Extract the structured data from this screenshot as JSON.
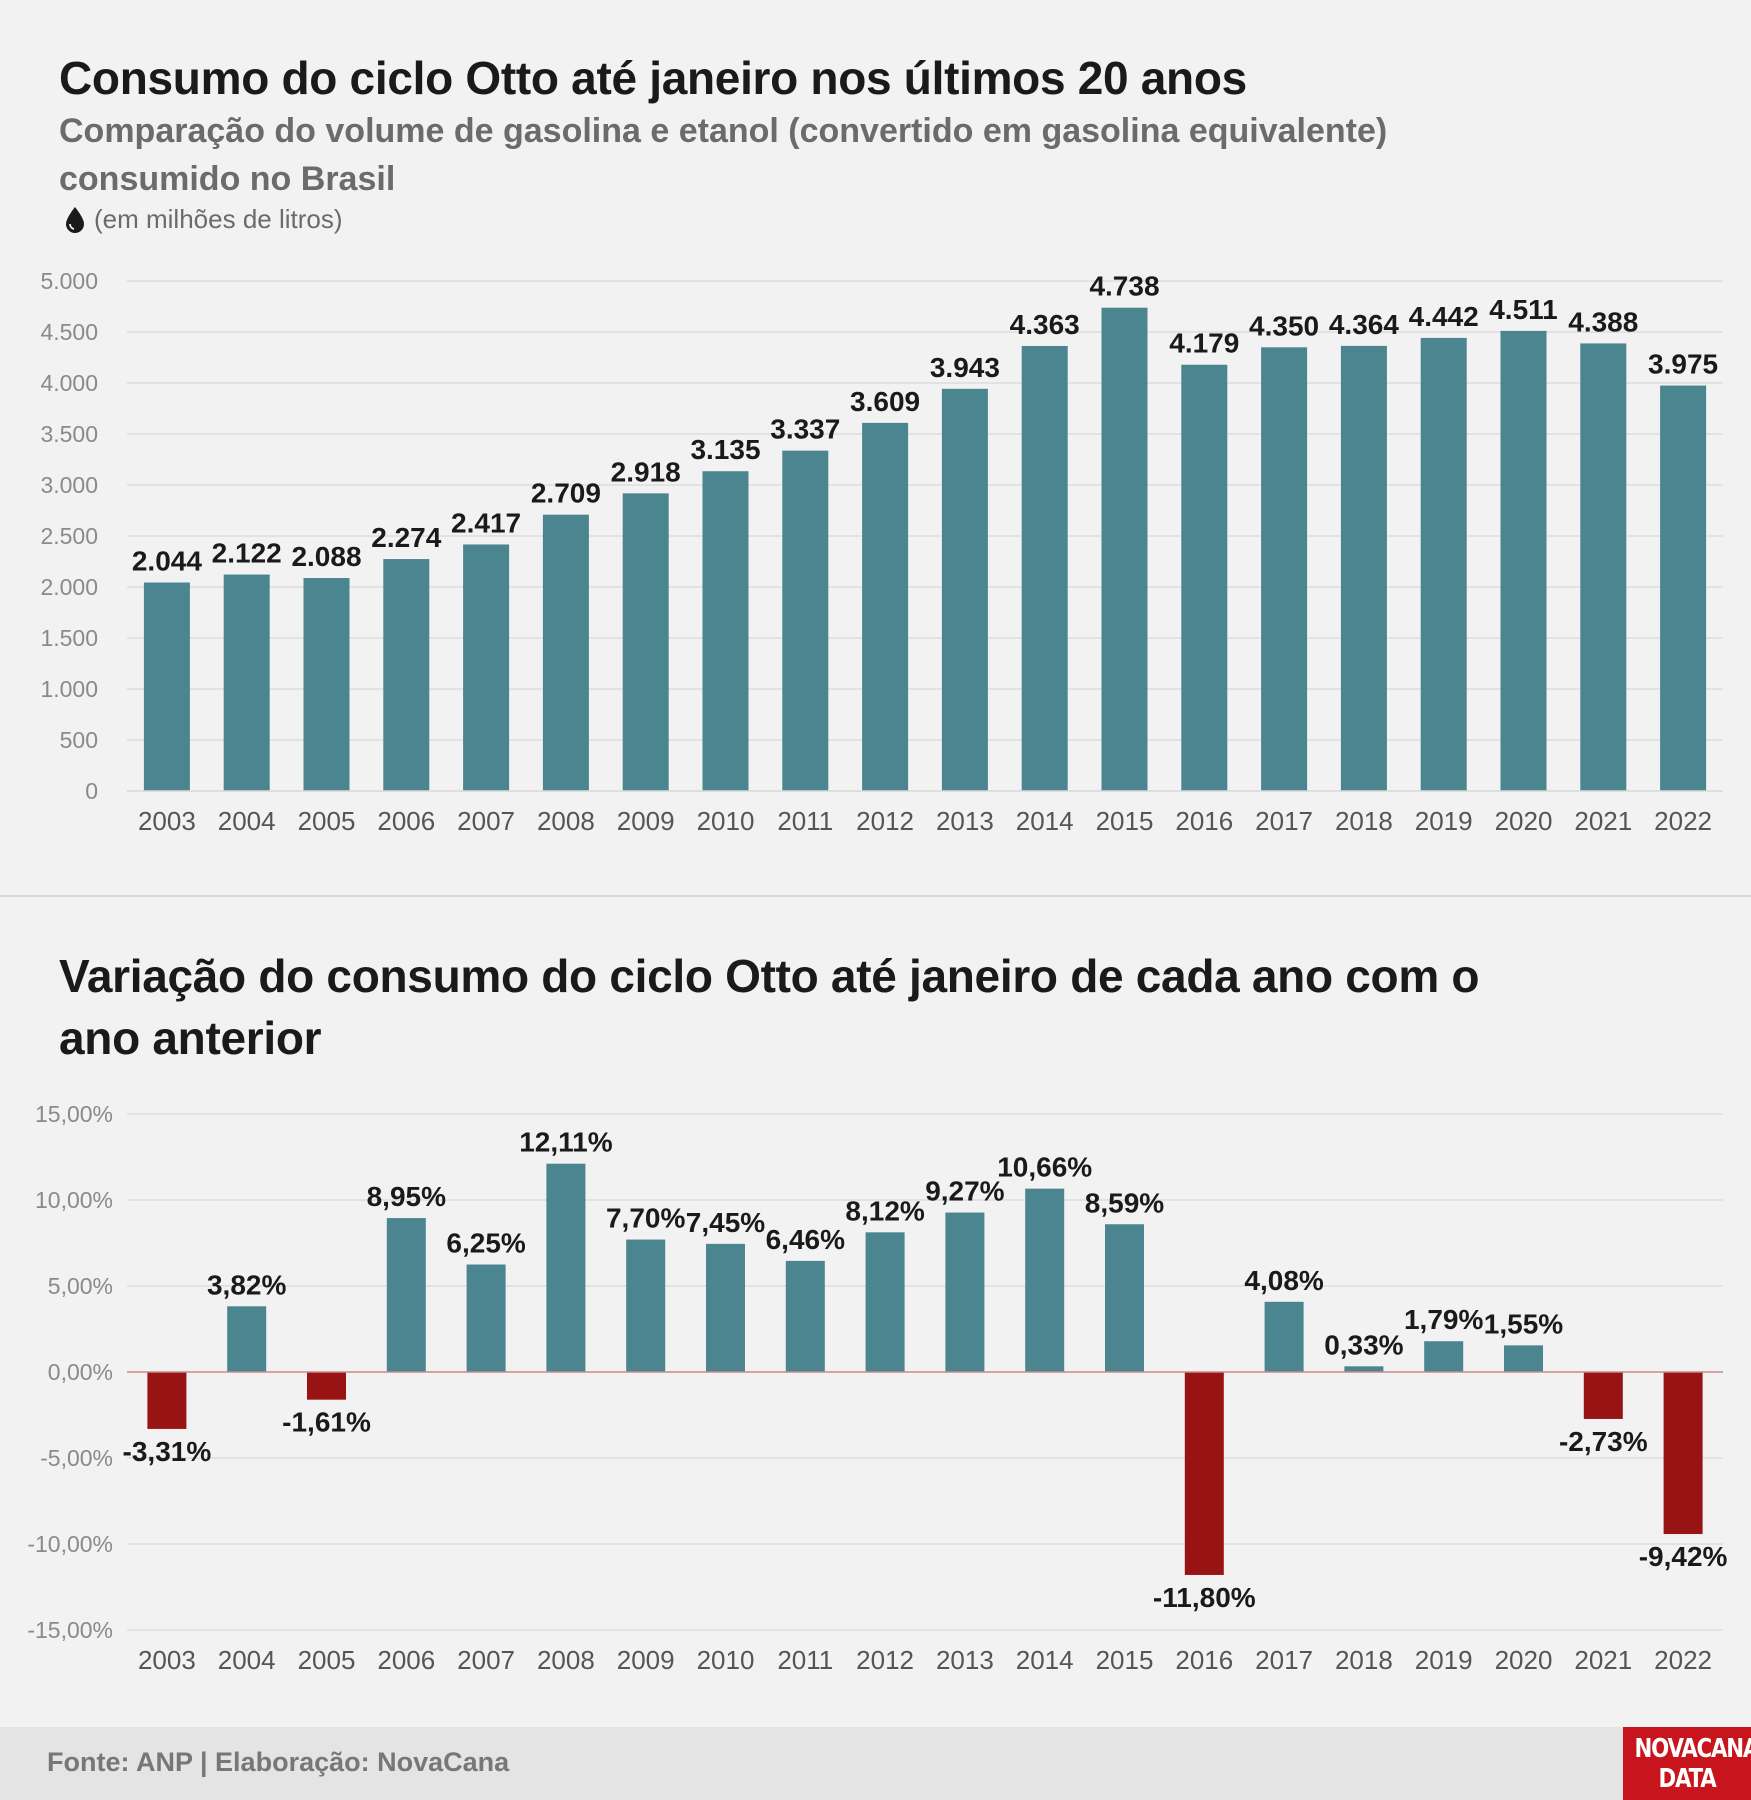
{
  "top": {
    "title": "Consumo do ciclo Otto até janeiro nos últimos 20 anos",
    "subtitle": "Comparação do volume de gasolina e etanol (convertido em gasolina equivalente) consumido no Brasil",
    "unit_label": "(em milhões de litros)",
    "unit_icon": "drop-icon"
  },
  "bottom": {
    "title": "Variação do consumo do ciclo Otto até janeiro de cada ano com o ano anterior"
  },
  "footer": {
    "source": "Fonte: ANP | Elaboração: NovaCana",
    "logo_line1": "NOVACANA",
    "logo_line2": "DATA"
  },
  "colors": {
    "bar": "#4a8590",
    "positive": "#4a8590",
    "negative": "#981414",
    "zero_line": "#c98a8a",
    "grid": "#dcdcdc",
    "logo": "#c8141c"
  },
  "chart_data": [
    {
      "type": "bar",
      "title": "Consumo do ciclo Otto até janeiro nos últimos 20 anos",
      "categories": [
        "2003",
        "2004",
        "2005",
        "2006",
        "2007",
        "2008",
        "2009",
        "2010",
        "2011",
        "2012",
        "2013",
        "2014",
        "2015",
        "2016",
        "2017",
        "2018",
        "2019",
        "2020",
        "2021",
        "2022"
      ],
      "values": [
        2044,
        2122,
        2088,
        2274,
        2417,
        2709,
        2918,
        3135,
        3337,
        3609,
        3943,
        4363,
        4738,
        4179,
        4350,
        4364,
        4442,
        4511,
        4388,
        3975
      ],
      "labels": [
        "2.044",
        "2.122",
        "2.088",
        "2.274",
        "2.417",
        "2.709",
        "2.918",
        "3.135",
        "3.337",
        "3.609",
        "3.943",
        "4.363",
        "4.738",
        "4.179",
        "4.350",
        "4.364",
        "4.442",
        "4.511",
        "4.388",
        "3.975"
      ],
      "ylim": [
        0,
        5000
      ],
      "yticks": [
        0,
        500,
        1000,
        1500,
        2000,
        2500,
        3000,
        3500,
        4000,
        4500,
        5000
      ],
      "ytick_labels": [
        "0",
        "500",
        "1.000",
        "1.500",
        "2.000",
        "2.500",
        "3.000",
        "3.500",
        "4.000",
        "4.500",
        "5.000"
      ],
      "grid": true
    },
    {
      "type": "bar",
      "title": "Variação do consumo do ciclo Otto até janeiro de cada ano com o ano anterior",
      "categories": [
        "2003",
        "2004",
        "2005",
        "2006",
        "2007",
        "2008",
        "2009",
        "2010",
        "2011",
        "2012",
        "2013",
        "2014",
        "2015",
        "2016",
        "2017",
        "2018",
        "2019",
        "2020",
        "2021",
        "2022"
      ],
      "values": [
        -3.31,
        3.82,
        -1.61,
        8.95,
        6.25,
        12.11,
        7.7,
        7.45,
        6.46,
        8.12,
        9.27,
        10.66,
        8.59,
        -11.8,
        4.08,
        0.33,
        1.79,
        1.55,
        -2.73,
        -9.42
      ],
      "labels": [
        "-3,31%",
        "3,82%",
        "-1,61%",
        "8,95%",
        "6,25%",
        "12,11%",
        "7,70%",
        "7,45%",
        "6,46%",
        "8,12%",
        "9,27%",
        "10,66%",
        "8,59%",
        "-11,80%",
        "4,08%",
        "0,33%",
        "1,79%",
        "1,55%",
        "-2,73%",
        "-9,42%"
      ],
      "ylim": [
        -15,
        15
      ],
      "yticks": [
        -15,
        -10,
        -5,
        0,
        5,
        10,
        15
      ],
      "ytick_labels": [
        "-15,00%",
        "-10,00%",
        "-5,00%",
        "0,00%",
        "5,00%",
        "10,00%",
        "15,00%"
      ],
      "grid": true
    }
  ]
}
